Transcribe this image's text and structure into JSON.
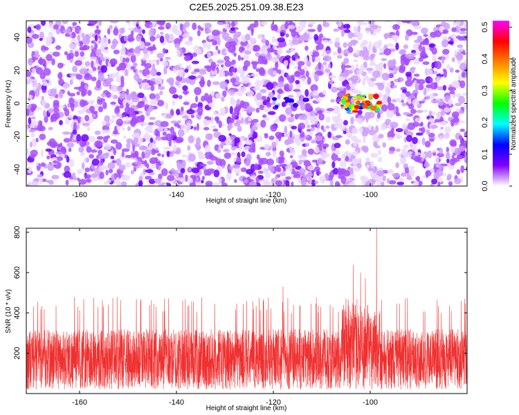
{
  "title": "C2E5.2025.251.09.38.E23",
  "chart_data": [
    {
      "type": "heatmap",
      "title": "C2E5.2025.251.09.38.E23",
      "xlabel": "Height of straight line (km)",
      "ylabel": "Frequency (Hz)",
      "xlim": [
        -171,
        -80
      ],
      "ylim": [
        -50,
        50
      ],
      "x_ticks": [
        -160,
        -140,
        -120,
        -100
      ],
      "x_tick_labels": [
        "-160",
        "-140",
        "-120",
        "-100"
      ],
      "y_ticks": [
        40,
        20,
        0,
        -20,
        -40
      ],
      "y_tick_labels": [
        "40",
        "20",
        "0",
        "-20",
        "-40"
      ],
      "colorbar": {
        "label": "Normalized spectral amplitude",
        "range": [
          0.0,
          0.52
        ],
        "ticks": [
          0.0,
          0.1,
          0.2,
          0.3,
          0.4,
          0.5
        ],
        "tick_labels": [
          "0.0",
          "0.1",
          "0.2",
          "0.3",
          "0.4",
          "0.5"
        ],
        "colormap": [
          "#ffffff",
          "#8000ff",
          "#0000ff",
          "#00ffff",
          "#00ff00",
          "#ffff00",
          "#ff8000",
          "#ff0000",
          "#ff00ff"
        ]
      },
      "background_level": "mostly 0.0-0.1 (white/purple speckle)",
      "features": [
        {
          "x_range": [
            -106,
            -98
          ],
          "y_range": [
            -5,
            5
          ],
          "peak": 0.5,
          "description": "strong band near 0 Hz"
        },
        {
          "x_range": [
            -120,
            -112
          ],
          "y_range": [
            -3,
            3
          ],
          "peak": 0.15,
          "description": "weaker blobs near 0 Hz"
        }
      ]
    },
    {
      "type": "line",
      "xlabel": "Height of straight line (km)",
      "ylabel": "SNR (10 * v/v)",
      "xlim": [
        -171,
        -80
      ],
      "ylim": [
        0,
        820
      ],
      "x_ticks": [
        -160,
        -140,
        -120,
        -100
      ],
      "x_tick_labels": [
        "-160",
        "-140",
        "-120",
        "-100"
      ],
      "y_ticks": [
        200,
        400,
        600,
        800
      ],
      "y_tick_labels": [
        "200",
        "400",
        "600",
        "800"
      ],
      "series_color": "#f03030",
      "noise_floor": [
        20,
        320
      ],
      "typical_peaks": [
        400,
        480
      ],
      "peaks": [
        {
          "x": -103.5,
          "y": 640
        },
        {
          "x": -102.0,
          "y": 600
        },
        {
          "x": -101.0,
          "y": 570
        },
        {
          "x": -98.7,
          "y": 820
        },
        {
          "x": -118.0,
          "y": 530
        }
      ]
    }
  ]
}
